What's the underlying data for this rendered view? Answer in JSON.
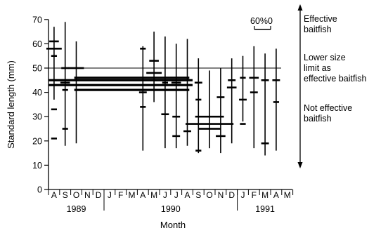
{
  "chart_data": {
    "type": "bar",
    "title": "",
    "xlabel": "Month",
    "ylabel": "Standard length (mm)",
    "ylim": [
      0,
      70
    ],
    "yticks": [
      0,
      10,
      20,
      30,
      40,
      50,
      60,
      70
    ],
    "months": [
      "A",
      "S",
      "O",
      "N",
      "D",
      "J",
      "F",
      "M",
      "A",
      "M",
      "J",
      "J",
      "A",
      "S",
      "O",
      "N",
      "D",
      "J",
      "F",
      "M",
      "A",
      "M"
    ],
    "years": [
      "1989",
      "1990",
      "1991"
    ],
    "threshold": 50,
    "scale_label": "60%0",
    "range_bars": [
      {
        "month": 0,
        "min": 37,
        "max": 67
      },
      {
        "month": 1,
        "min": 18,
        "max": 69
      },
      {
        "month": 2,
        "min": 19,
        "max": 61
      },
      {
        "month": 8,
        "min": 16,
        "max": 59
      },
      {
        "month": 9,
        "min": 36,
        "max": 65
      },
      {
        "month": 10,
        "min": 17,
        "max": 63
      },
      {
        "month": 11,
        "min": 17,
        "max": 60
      },
      {
        "month": 12,
        "min": 18,
        "max": 62
      },
      {
        "month": 13,
        "min": 15,
        "max": 54
      },
      {
        "month": 14,
        "min": 17,
        "max": 49
      },
      {
        "month": 15,
        "min": 15,
        "max": 50
      },
      {
        "month": 16,
        "min": 19,
        "max": 54
      },
      {
        "month": 17,
        "min": 28,
        "max": 55
      },
      {
        "month": 18,
        "min": 17,
        "max": 59
      },
      {
        "month": 19,
        "min": 14,
        "max": 56
      },
      {
        "month": 20,
        "min": 16,
        "max": 58
      }
    ],
    "frequency_bars": [
      {
        "month": 0,
        "length": 61,
        "percent": 5
      },
      {
        "month": 0,
        "length": 58,
        "percent": 8
      },
      {
        "month": 0,
        "length": 55,
        "percent": 3
      },
      {
        "month": 0,
        "length": 33,
        "percent": 3
      },
      {
        "month": 0,
        "length": 21,
        "percent": 3
      },
      {
        "month": 1,
        "length": 50,
        "percent": 4
      },
      {
        "month": 1,
        "length": 44,
        "percent": 5
      },
      {
        "month": 1,
        "length": 41,
        "percent": 3
      },
      {
        "month": 1,
        "length": 25,
        "percent": 3
      },
      {
        "month": 2,
        "length": 50,
        "percent": 8
      },
      {
        "month": 2,
        "length": 45,
        "percent": 3
      },
      {
        "month": 6,
        "length": 45,
        "percent": 75
      },
      {
        "month": 6,
        "length": 43,
        "percent": 75
      },
      {
        "month": 7,
        "length": 46,
        "percent": 60
      },
      {
        "month": 7,
        "length": 41,
        "percent": 60
      },
      {
        "month": 8,
        "length": 58,
        "percent": 3
      },
      {
        "month": 8,
        "length": 40,
        "percent": 4
      },
      {
        "month": 8,
        "length": 34,
        "percent": 3
      },
      {
        "month": 9,
        "length": 53,
        "percent": 5
      },
      {
        "month": 9,
        "length": 48,
        "percent": 8
      },
      {
        "month": 9,
        "length": 45,
        "percent": 4
      },
      {
        "month": 10,
        "length": 44,
        "percent": 3
      },
      {
        "month": 10,
        "length": 31,
        "percent": 4
      },
      {
        "month": 11,
        "length": 44,
        "percent": 5
      },
      {
        "month": 11,
        "length": 30,
        "percent": 4
      },
      {
        "month": 11,
        "length": 22,
        "percent": 4
      },
      {
        "month": 12,
        "length": 43,
        "percent": 4
      },
      {
        "month": 12,
        "length": 24,
        "percent": 4
      },
      {
        "month": 13,
        "length": 44,
        "percent": 4
      },
      {
        "month": 13,
        "length": 37,
        "percent": 3
      },
      {
        "month": 13,
        "length": 16,
        "percent": 3
      },
      {
        "month": 14,
        "length": 30,
        "percent": 15
      },
      {
        "month": 14,
        "length": 27,
        "percent": 25
      },
      {
        "month": 14,
        "length": 25,
        "percent": 12
      },
      {
        "month": 15,
        "length": 38,
        "percent": 4
      },
      {
        "month": 15,
        "length": 22,
        "percent": 5
      },
      {
        "month": 16,
        "length": 42,
        "percent": 5
      },
      {
        "month": 16,
        "length": 45,
        "percent": 4
      },
      {
        "month": 17,
        "length": 46,
        "percent": 3
      },
      {
        "month": 17,
        "length": 37,
        "percent": 4
      },
      {
        "month": 17,
        "length": 27,
        "percent": 3
      },
      {
        "month": 18,
        "length": 46,
        "percent": 5
      },
      {
        "month": 18,
        "length": 40,
        "percent": 4
      },
      {
        "month": 19,
        "length": 45,
        "percent": 4
      },
      {
        "month": 19,
        "length": 19,
        "percent": 4
      },
      {
        "month": 20,
        "length": 45,
        "percent": 4
      },
      {
        "month": 20,
        "length": 36,
        "percent": 3
      }
    ]
  },
  "annotations": {
    "effective": [
      "Effective",
      "baitfish"
    ],
    "lower_limit": [
      "Lower size",
      "limit as",
      "effective baitfish"
    ],
    "not_effective": [
      "Not effective",
      "baitfish"
    ]
  }
}
